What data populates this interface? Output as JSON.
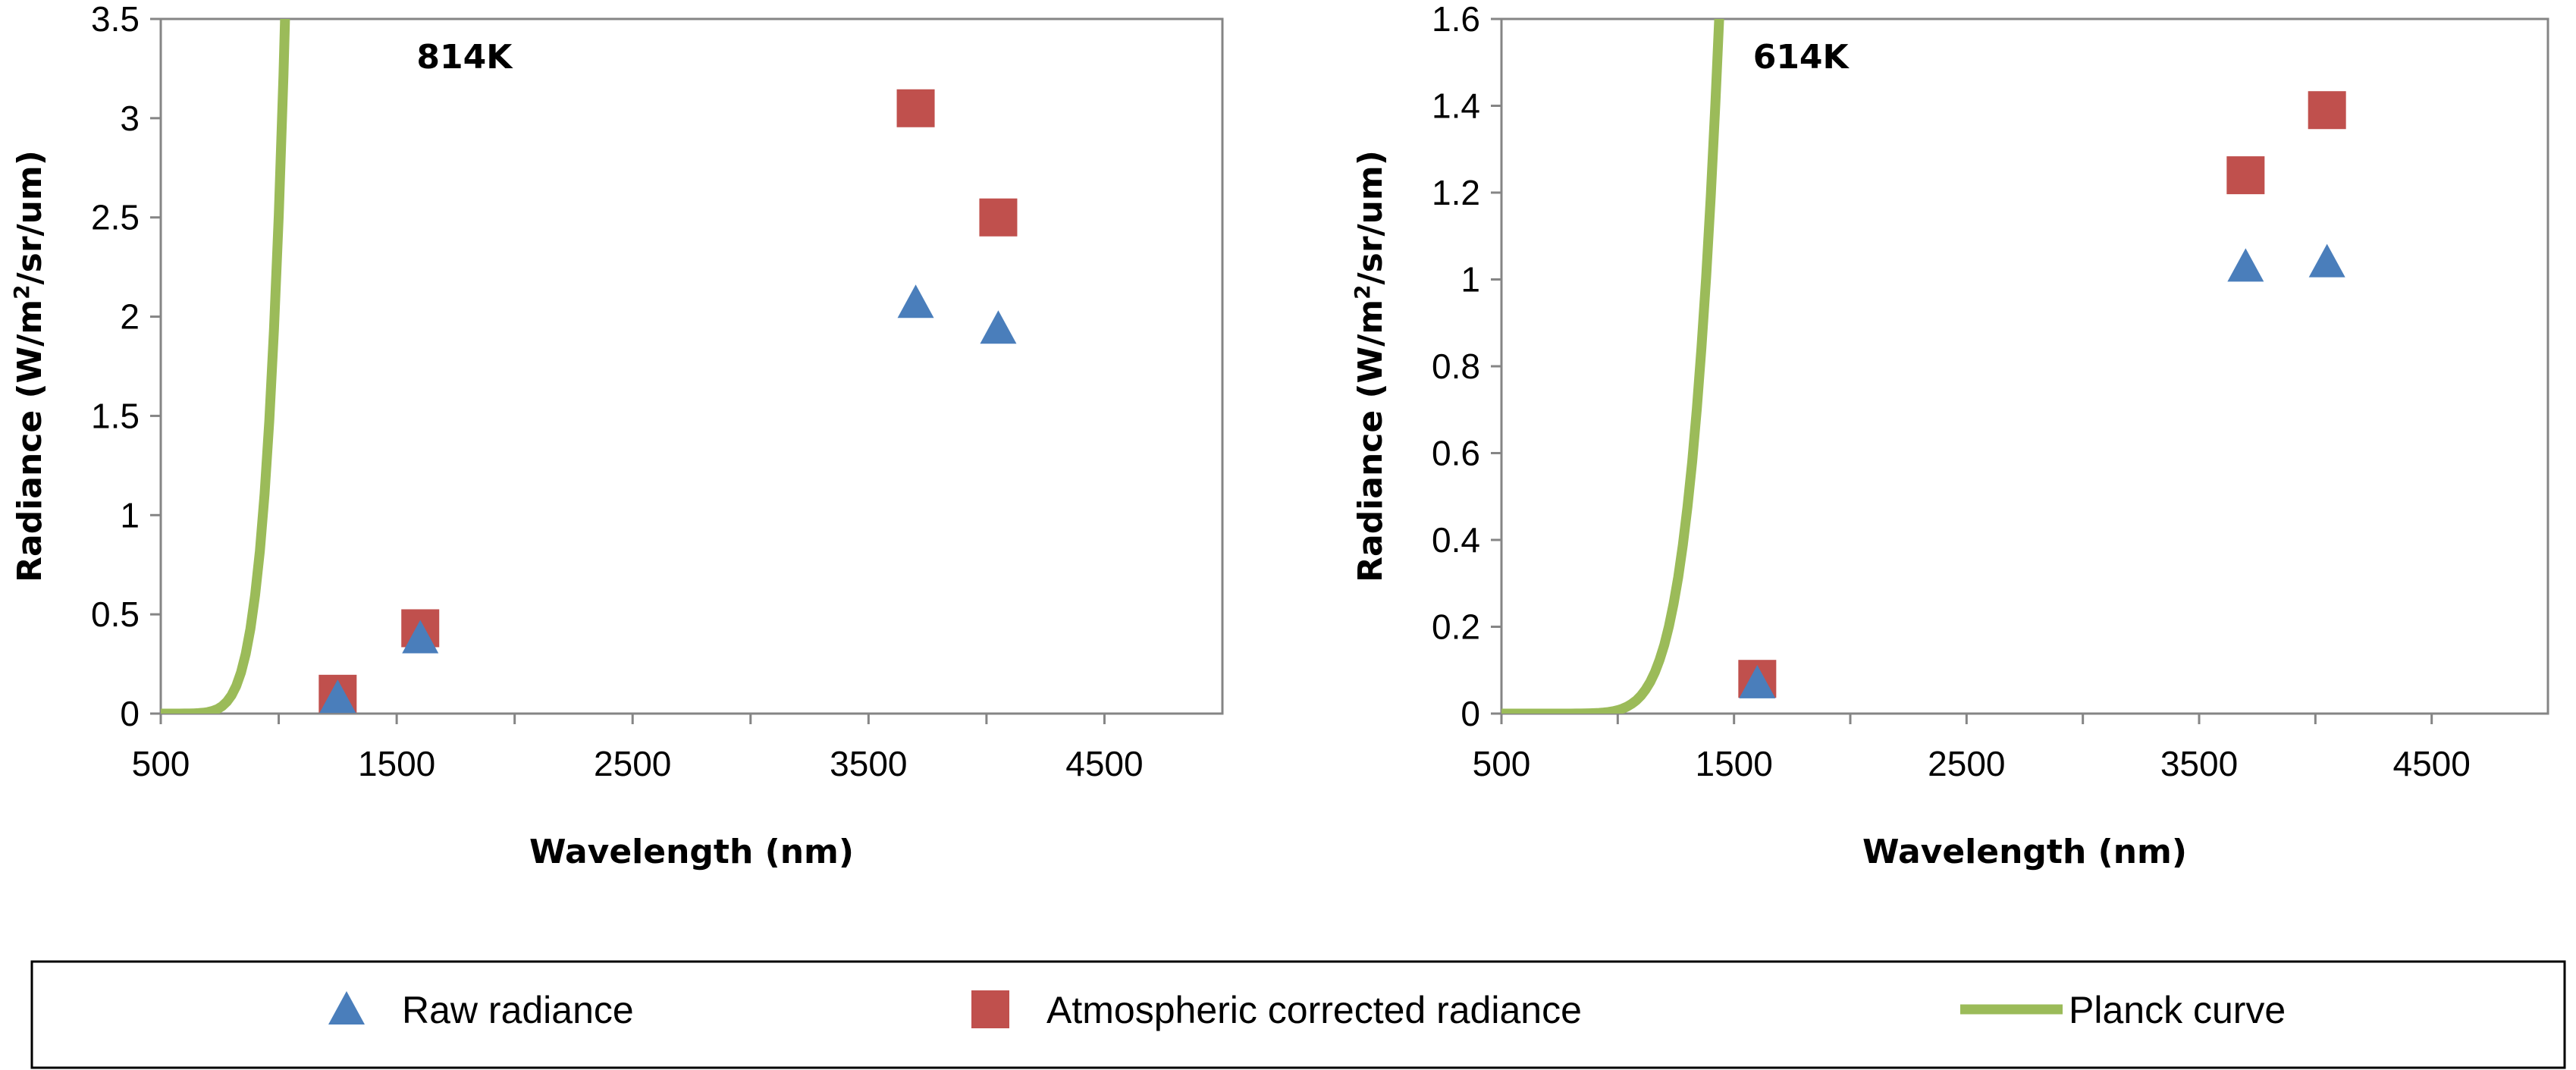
{
  "colors": {
    "raw": "#4a7ebb",
    "corrected": "#c0504d",
    "planck": "#9bbb59",
    "axis": "#858585"
  },
  "chart_data": [
    {
      "type": "scatter",
      "title": "814K",
      "xlabel": "Wavelength (nm)",
      "ylabel": "Radiance (W/m²/sr/um)",
      "xlim": [
        500,
        5000
      ],
      "ylim": [
        0,
        3.5
      ],
      "xticks": [
        500,
        1500,
        2500,
        3500,
        4500
      ],
      "xtick_labels": [
        "500",
        "1500",
        "2500",
        "3500",
        "4500"
      ],
      "yticks": [
        0,
        0.5,
        1,
        1.5,
        2,
        2.5,
        3,
        3.5
      ],
      "ytick_labels": [
        "0",
        "0.5",
        "1",
        "1.5",
        "2",
        "2.5",
        "3",
        "3.5"
      ],
      "temperature_K": 814,
      "series": [
        {
          "name": "Raw radiance",
          "marker": "triangle",
          "x": [
            1250,
            1600,
            3700,
            4050
          ],
          "y": [
            0.08,
            0.38,
            2.07,
            1.94
          ]
        },
        {
          "name": "Atmospheric corrected radiance",
          "marker": "square",
          "x": [
            1250,
            1600,
            3700,
            4050
          ],
          "y": [
            0.1,
            0.43,
            3.05,
            2.5
          ]
        },
        {
          "name": "Planck curve",
          "marker": "line"
        }
      ]
    },
    {
      "type": "scatter",
      "title": "614K",
      "xlabel": "Wavelength (nm)",
      "ylabel": "Radiance (W/m²/sr/um)",
      "xlim": [
        500,
        5000
      ],
      "ylim": [
        0,
        1.6
      ],
      "xticks": [
        500,
        1500,
        2500,
        3500,
        4500
      ],
      "xtick_labels": [
        "500",
        "1500",
        "2500",
        "3500",
        "4500"
      ],
      "yticks": [
        0,
        0.2,
        0.4,
        0.6,
        0.8,
        1,
        1.2,
        1.4,
        1.6
      ],
      "ytick_labels": [
        "0",
        "0.2",
        "0.4",
        "0.6",
        "0.8",
        "1",
        "1.2",
        "1.4",
        "1.6"
      ],
      "temperature_K": 614,
      "series": [
        {
          "name": "Raw radiance",
          "marker": "triangle",
          "x": [
            1600,
            3700,
            4050
          ],
          "y": [
            0.07,
            1.03,
            1.04
          ]
        },
        {
          "name": "Atmospheric corrected radiance",
          "marker": "square",
          "x": [
            1600,
            3700,
            4050
          ],
          "y": [
            0.08,
            1.24,
            1.39
          ]
        },
        {
          "name": "Planck curve",
          "marker": "line"
        }
      ]
    }
  ],
  "legend": [
    {
      "label": "Raw radiance",
      "marker": "triangle"
    },
    {
      "label": "Atmospheric corrected radiance",
      "marker": "square"
    },
    {
      "label": "Planck curve",
      "marker": "line"
    }
  ]
}
